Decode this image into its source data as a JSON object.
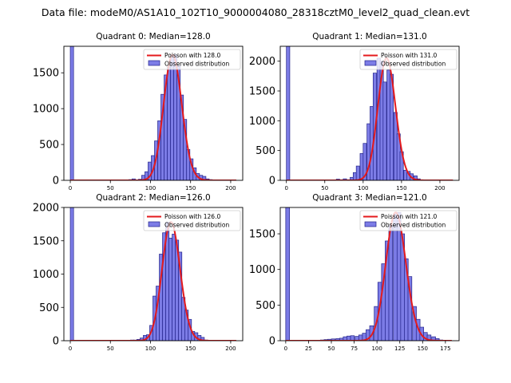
{
  "figure_title": "Data file: modeM0/AS1A10_102T10_9000004080_28318cztM0_level2_quad_clean.evt",
  "colors": {
    "bar_fill": "#7c7ce6",
    "bar_edge": "#22228a",
    "poisson_line": "#e41a1c",
    "axis": "#000000"
  },
  "chart_data": [
    {
      "type": "bar",
      "title": "Quadrant 0: Median=128.0",
      "median": 128.0,
      "xlim": [
        -8,
        215
      ],
      "ylim": [
        0,
        1870
      ],
      "xticks": [
        0,
        50,
        100,
        150,
        200
      ],
      "yticks": [
        0,
        500,
        1000,
        1500
      ],
      "bin_width": 4.1,
      "bins": [
        0,
        73,
        77,
        81,
        85,
        89,
        93,
        97,
        101,
        105,
        109,
        113,
        117,
        121,
        125,
        129,
        133,
        137,
        141,
        145,
        149,
        153,
        157,
        161,
        165,
        169,
        173,
        177
      ],
      "values": [
        1870,
        10,
        20,
        5,
        15,
        70,
        120,
        255,
        345,
        550,
        830,
        1200,
        1470,
        1580,
        1750,
        1750,
        1600,
        1190,
        850,
        430,
        300,
        175,
        95,
        70,
        55,
        20,
        10,
        5
      ],
      "poisson_label": "Poisson with 128.0",
      "observed_label": "Observed distribution"
    },
    {
      "type": "bar",
      "title": "Quadrant 1: Median=131.0",
      "median": 131.0,
      "xlim": [
        -8,
        225
      ],
      "ylim": [
        0,
        2250
      ],
      "xticks": [
        0,
        50,
        100,
        150,
        200
      ],
      "yticks": [
        0,
        500,
        1000,
        1500,
        2000
      ],
      "bin_width": 4.4,
      "bins": [
        0,
        65,
        70,
        74,
        78,
        83,
        87,
        91,
        96,
        100,
        105,
        109,
        113,
        118,
        122,
        126,
        131,
        135,
        140,
        144,
        148,
        153,
        157,
        161,
        166,
        170
      ],
      "values": [
        2250,
        20,
        10,
        25,
        10,
        50,
        130,
        240,
        450,
        620,
        950,
        1240,
        1800,
        2050,
        2000,
        1650,
        1850,
        1780,
        1140,
        780,
        480,
        170,
        150,
        110,
        75,
        25
      ],
      "poisson_label": "Poisson with 131.0",
      "observed_label": "Observed distribution"
    },
    {
      "type": "bar",
      "title": "Quadrant 2: Median=126.0",
      "median": 126.0,
      "xlim": [
        -8,
        215
      ],
      "ylim": [
        0,
        2000
      ],
      "xticks": [
        0,
        50,
        100,
        150,
        200
      ],
      "yticks": [
        0,
        500,
        1000,
        1500,
        2000
      ],
      "bin_width": 4.1,
      "bins": [
        0,
        67,
        71,
        75,
        79,
        83,
        87,
        91,
        95,
        99,
        103,
        107,
        111,
        115,
        119,
        123,
        127,
        131,
        135,
        139,
        143,
        147,
        151,
        155,
        159,
        163,
        167
      ],
      "values": [
        2000,
        5,
        5,
        10,
        10,
        20,
        40,
        80,
        90,
        230,
        670,
        820,
        1300,
        1620,
        1780,
        1540,
        1600,
        1510,
        1330,
        650,
        460,
        320,
        140,
        120,
        80,
        50,
        10
      ],
      "poisson_label": "Poisson with 126.0",
      "observed_label": "Observed distribution"
    },
    {
      "type": "bar",
      "title": "Quadrant 3: Median=121.0",
      "median": 121.0,
      "xlim": [
        -6,
        190
      ],
      "ylim": [
        0,
        1870
      ],
      "xticks": [
        0,
        25,
        50,
        75,
        100,
        125,
        150,
        175
      ],
      "yticks": [
        0,
        500,
        1000,
        1500
      ],
      "bin_width": 4.2,
      "bins": [
        0,
        29,
        33,
        38,
        42,
        46,
        50,
        55,
        59,
        63,
        67,
        71,
        76,
        80,
        84,
        88,
        92,
        97,
        101,
        105,
        109,
        113,
        118,
        122,
        126,
        130,
        134,
        139,
        143,
        147,
        151,
        155,
        160,
        164,
        168
      ],
      "values": [
        1870,
        5,
        5,
        10,
        15,
        20,
        25,
        30,
        35,
        55,
        65,
        70,
        60,
        80,
        105,
        155,
        210,
        480,
        820,
        1080,
        1400,
        1620,
        1780,
        1800,
        1500,
        1150,
        900,
        480,
        300,
        190,
        115,
        80,
        55,
        30,
        10
      ],
      "poisson_label": "Poisson with 121.0",
      "observed_label": "Observed distribution"
    }
  ]
}
